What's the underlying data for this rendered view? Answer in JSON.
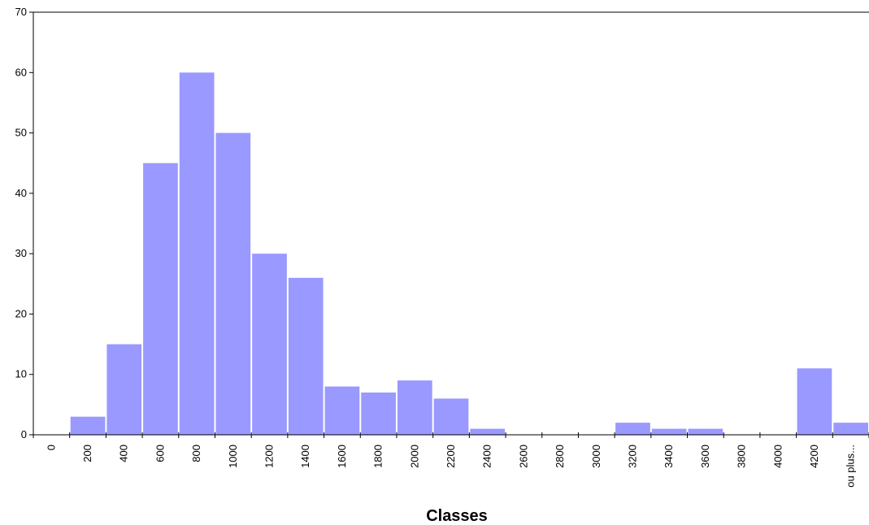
{
  "chart_data": {
    "type": "bar",
    "title": "",
    "xlabel": "Classes",
    "ylabel": "",
    "ylim": [
      0,
      70
    ],
    "yticks": [
      0,
      10,
      20,
      30,
      40,
      50,
      60,
      70
    ],
    "grid": false,
    "legend": "none",
    "categories": [
      "0",
      "200",
      "400",
      "600",
      "800",
      "1000",
      "1200",
      "1400",
      "1600",
      "1800",
      "2000",
      "2200",
      "2400",
      "2600",
      "2800",
      "3000",
      "3200",
      "3400",
      "3600",
      "3800",
      "4000",
      "4200",
      "ou plus..."
    ],
    "values": [
      0,
      3,
      15,
      45,
      60,
      50,
      30,
      26,
      8,
      7,
      9,
      6,
      1,
      0,
      0,
      0,
      2,
      1,
      1,
      0,
      0,
      11,
      2
    ],
    "colors": {
      "bar": "#9999ff",
      "axis": "#000000"
    }
  }
}
